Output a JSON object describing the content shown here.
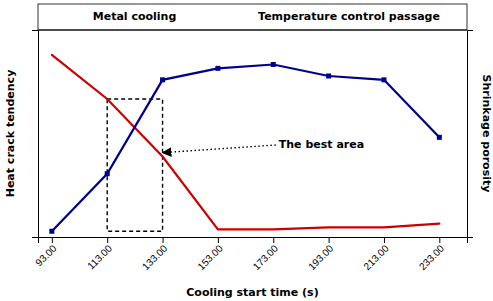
{
  "chart_data": {
    "type": "line",
    "x": [
      93,
      113,
      133,
      153,
      173,
      193,
      213,
      233
    ],
    "series": [
      {
        "color": "#cc0000",
        "values": [
          0.95,
          0.72,
          0.42,
          0.04,
          0.04,
          0.05,
          0.05,
          0.07
        ]
      },
      {
        "color": "#00008B",
        "marker": "square",
        "values": [
          0.03,
          0.33,
          0.82,
          0.88,
          0.9,
          0.84,
          0.82,
          0.52
        ]
      }
    ],
    "xlabel": "Cooling start time (s)",
    "ylabel": "Heat crack tendency",
    "y2label": "Shrinkage porosity",
    "header": [
      "Metal cooling",
      "Temperature control passage"
    ],
    "annotation": {
      "text": "The best area",
      "x": 175,
      "y": 0.48,
      "arrow_x": 133,
      "arrow_y": 0.44
    },
    "box": {
      "x": [
        113,
        133
      ],
      "y": [
        0.03,
        0.72
      ]
    },
    "xlim": [
      88,
      243
    ],
    "ylim": [
      0.0,
      1.08
    ],
    "xticks": [
      {
        "value": 93,
        "label": "93.00"
      },
      {
        "value": 113,
        "label": "113.00"
      },
      {
        "value": 133,
        "label": "133.00"
      },
      {
        "value": 153,
        "label": "153.00"
      },
      {
        "value": 173,
        "label": "173.00"
      },
      {
        "value": 193,
        "label": "193.00"
      },
      {
        "value": 213,
        "label": "213.00"
      },
      {
        "value": 233,
        "label": "233.00"
      }
    ],
    "tick_labels": "x",
    "grid": false
  }
}
